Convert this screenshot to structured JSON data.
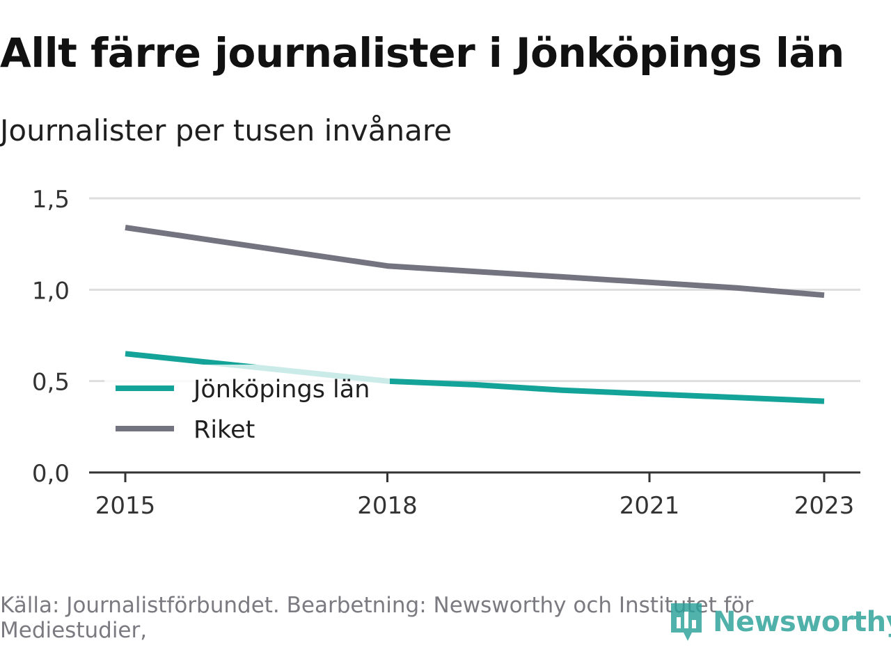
{
  "header": {
    "title": "Allt färre journalister i Jönköpings län",
    "subtitle": "Journalister per tusen invånare"
  },
  "footer": {
    "source": "Källa: Journalistförbundet. Bearbetning: Newsworthy och Institutet för Mediestudier,",
    "brand": "Newsworthy"
  },
  "colors": {
    "jonkoping": "#14a399",
    "riket": "#747480",
    "grid": "#dedede",
    "axis": "#333333",
    "brand": "#2aa198"
  },
  "chart_data": {
    "type": "line",
    "title": "Allt färre journalister i Jönköpings län",
    "ylabel": "Journalister per tusen invånare",
    "xlabel": "",
    "xlim": [
      2015,
      2023
    ],
    "ylim": [
      0,
      1.5
    ],
    "grid": true,
    "legend_position": "bottom-left",
    "x_ticks": [
      {
        "value": 2015,
        "label": "2015"
      },
      {
        "value": 2018,
        "label": "2018"
      },
      {
        "value": 2021,
        "label": "2021"
      },
      {
        "value": 2023,
        "label": "2023"
      }
    ],
    "y_ticks": [
      {
        "value": 0,
        "label": "0,0"
      },
      {
        "value": 0.5,
        "label": "0,5"
      },
      {
        "value": 1.0,
        "label": "1,0"
      },
      {
        "value": 1.5,
        "label": "1,5"
      }
    ],
    "series": [
      {
        "name": "Jönköpings län",
        "color": "#14a399",
        "x": [
          2015,
          2016,
          2017,
          2018,
          2019,
          2020,
          2021,
          2022,
          2023
        ],
        "values": [
          0.65,
          0.6,
          0.55,
          0.5,
          0.48,
          0.45,
          0.43,
          0.41,
          0.39
        ]
      },
      {
        "name": "Riket",
        "color": "#747480",
        "x": [
          2015,
          2016,
          2017,
          2018,
          2019,
          2020,
          2021,
          2022,
          2023
        ],
        "values": [
          1.34,
          1.27,
          1.2,
          1.13,
          1.1,
          1.07,
          1.04,
          1.01,
          0.97
        ]
      }
    ]
  }
}
